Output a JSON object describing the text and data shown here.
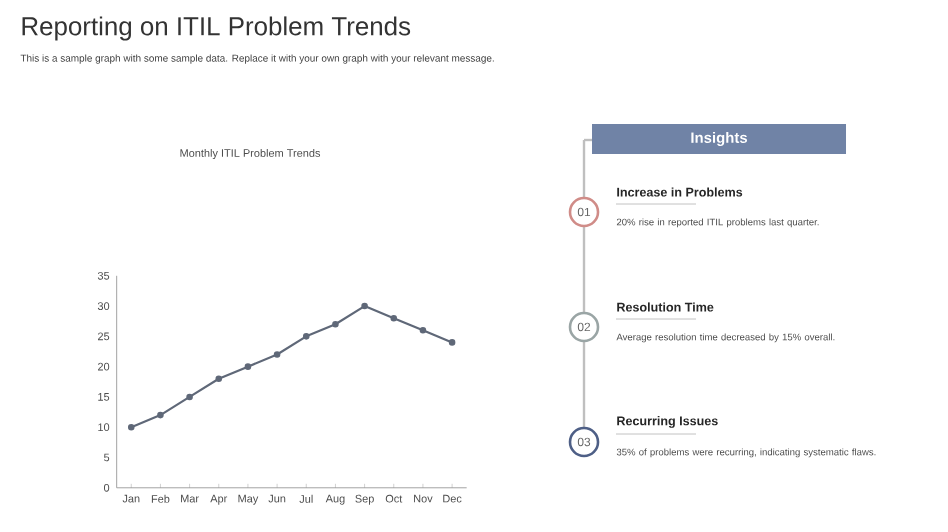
{
  "chart_data": [
    {
      "type": "other",
      "title": "Reporting on ITIL Problem Trends",
      "subtitle": "This is a sample graph with some sample data. Replace it with your own graph with your relevant message."
    },
    {
      "type": "line",
      "title": "Monthly ITIL Problem Trends",
      "categories": [
        "Jan",
        "Feb",
        "Mar",
        "Apr",
        "May",
        "Jun",
        "Jul",
        "Aug",
        "Sep",
        "Oct",
        "Nov",
        "Dec"
      ],
      "series": [
        {
          "color": "#5f6878",
          "values": [
            10,
            12,
            15,
            18,
            20,
            22,
            25,
            27,
            30,
            28,
            26,
            24
          ]
        }
      ],
      "ylim": [
        0,
        35
      ],
      "yticks": [
        0,
        5,
        10,
        15,
        20,
        25,
        30,
        35
      ],
      "marker": "circle",
      "line_style": "solid"
    },
    {
      "type": "other",
      "title": "Insights",
      "annotations": [
        "01",
        "Increase in Problems",
        "20% rise in reported ITIL problems last quarter.",
        "02",
        "Resolution Time",
        "Average resolution time decreased by 15% overall.",
        "03",
        "Recurring Issues",
        "35% of problems were recurring, indicating systematic flaws."
      ]
    }
  ]
}
